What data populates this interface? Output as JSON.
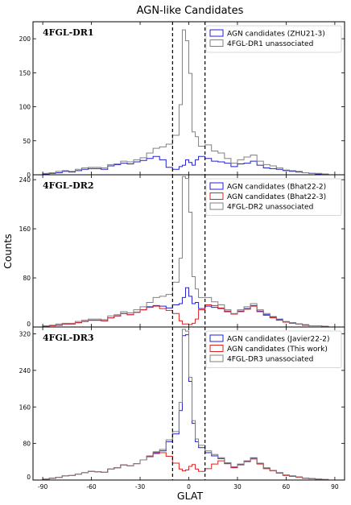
{
  "figure": {
    "title": "AGN-like Candidates",
    "xlabel": "GLAT",
    "ylabel": "Counts"
  },
  "chart_data": [
    {
      "type": "histogram",
      "panel_label": "4FGL-DR1",
      "x_bin_edges": [
        -90,
        -86,
        -82,
        -78,
        -74,
        -70,
        -66,
        -62,
        -58,
        -54,
        -50,
        -46,
        -42,
        -38,
        -34,
        -30,
        -26,
        -22,
        -18,
        -14,
        -10,
        -6,
        -4,
        -2,
        0,
        2,
        4,
        6,
        10,
        14,
        18,
        22,
        26,
        30,
        34,
        38,
        42,
        46,
        50,
        54,
        58,
        62,
        66,
        70,
        74,
        78,
        82,
        86,
        90
      ],
      "xlim": [
        -96,
        96
      ],
      "ylim": [
        0,
        225
      ],
      "yticks": [
        0,
        50,
        100,
        150,
        200
      ],
      "xticks": [
        -90,
        -60,
        -30,
        0,
        30,
        60,
        90
      ],
      "vlines": [
        -10,
        10
      ],
      "legend_position": "top-right",
      "series": [
        {
          "name": "AGN candidates (ZHU21-3)",
          "color": "#2222cc",
          "values": [
            1,
            2,
            3,
            5,
            4,
            6,
            8,
            9,
            9,
            8,
            13,
            15,
            17,
            16,
            19,
            21,
            24,
            27,
            22,
            11,
            8,
            12,
            14,
            22,
            18,
            14,
            22,
            27,
            24,
            20,
            19,
            17,
            12,
            16,
            17,
            20,
            14,
            10,
            9,
            8,
            6,
            5,
            4,
            3,
            2,
            1,
            1,
            0
          ]
        },
        {
          "name": "4FGL-DR1 unassociated",
          "color": "#808080",
          "values": [
            2,
            3,
            5,
            6,
            5,
            8,
            10,
            11,
            11,
            10,
            15,
            16,
            20,
            19,
            22,
            25,
            32,
            39,
            41,
            45,
            58,
            103,
            213,
            197,
            149,
            63,
            56,
            42,
            44,
            35,
            32,
            24,
            17,
            22,
            26,
            29,
            20,
            15,
            13,
            10,
            7,
            6,
            5,
            3,
            2,
            2,
            1,
            0
          ]
        }
      ]
    },
    {
      "type": "histogram",
      "panel_label": "4FGL-DR2",
      "x_bin_edges": [
        -90,
        -86,
        -82,
        -78,
        -74,
        -70,
        -66,
        -62,
        -58,
        -54,
        -50,
        -46,
        -42,
        -38,
        -34,
        -30,
        -26,
        -22,
        -18,
        -14,
        -10,
        -6,
        -4,
        -2,
        0,
        2,
        4,
        6,
        10,
        14,
        18,
        22,
        26,
        30,
        34,
        38,
        42,
        46,
        50,
        54,
        58,
        62,
        66,
        70,
        74,
        78,
        82,
        86,
        90
      ],
      "xlim": [
        -96,
        96
      ],
      "ylim": [
        0,
        248
      ],
      "yticks": [
        0,
        80,
        160,
        240
      ],
      "xticks": [
        -90,
        -60,
        -30,
        0,
        30,
        60,
        90
      ],
      "vlines": [
        -10,
        10
      ],
      "legend_position": "top-right",
      "series": [
        {
          "name": "AGN candidates (Bhat22-2)",
          "color": "#2222cc",
          "values": [
            1,
            2,
            3,
            5,
            5,
            7,
            9,
            11,
            11,
            10,
            15,
            18,
            22,
            20,
            24,
            28,
            33,
            35,
            34,
            31,
            36,
            38,
            48,
            64,
            50,
            38,
            40,
            30,
            34,
            32,
            30,
            25,
            21,
            26,
            30,
            35,
            26,
            20,
            16,
            12,
            8,
            7,
            5,
            3,
            2,
            2,
            1,
            0
          ]
        },
        {
          "name": "AGN candidates (Bhat22-3)",
          "color": "#dd2222",
          "values": [
            1,
            2,
            3,
            5,
            5,
            7,
            9,
            11,
            11,
            10,
            15,
            18,
            22,
            20,
            24,
            28,
            32,
            34,
            30,
            27,
            22,
            10,
            5,
            5,
            4,
            6,
            13,
            28,
            36,
            35,
            31,
            26,
            21,
            25,
            29,
            34,
            25,
            19,
            15,
            11,
            8,
            6,
            5,
            3,
            2,
            2,
            1,
            0
          ]
        },
        {
          "name": "4FGL-DR2 unassociated",
          "color": "#808080",
          "values": [
            2,
            3,
            5,
            6,
            6,
            9,
            11,
            13,
            13,
            12,
            18,
            20,
            25,
            23,
            28,
            33,
            40,
            48,
            50,
            53,
            73,
            112,
            245,
            242,
            187,
            82,
            62,
            48,
            48,
            41,
            36,
            28,
            22,
            28,
            33,
            38,
            28,
            22,
            17,
            13,
            9,
            7,
            5,
            4,
            2,
            2,
            1,
            0
          ]
        }
      ]
    },
    {
      "type": "histogram",
      "panel_label": "4FGL-DR3",
      "x_bin_edges": [
        -90,
        -86,
        -82,
        -78,
        -74,
        -70,
        -66,
        -62,
        -58,
        -54,
        -50,
        -46,
        -42,
        -38,
        -34,
        -30,
        -26,
        -22,
        -18,
        -14,
        -10,
        -6,
        -4,
        -2,
        0,
        2,
        4,
        6,
        10,
        14,
        18,
        22,
        26,
        30,
        34,
        38,
        42,
        46,
        50,
        54,
        58,
        62,
        66,
        70,
        74,
        78,
        82,
        86,
        90
      ],
      "xlim": [
        -96,
        96
      ],
      "ylim": [
        0,
        335
      ],
      "yticks": [
        0,
        80,
        160,
        240,
        320
      ],
      "xticks": [
        -90,
        -60,
        -30,
        0,
        30,
        60,
        90
      ],
      "vlines": [
        -10,
        10
      ],
      "legend_position": "top-right",
      "series": [
        {
          "name": "AGN candidates (Javier22-2)",
          "color": "#2222cc",
          "values": [
            2,
            4,
            6,
            9,
            10,
            13,
            16,
            19,
            18,
            17,
            24,
            27,
            33,
            31,
            36,
            44,
            52,
            60,
            64,
            84,
            101,
            152,
            316,
            318,
            216,
            124,
            84,
            71,
            60,
            53,
            47,
            36,
            28,
            34,
            41,
            48,
            36,
            26,
            21,
            16,
            11,
            9,
            7,
            4,
            3,
            2,
            1,
            0
          ]
        },
        {
          "name": "AGN candidates (This work)",
          "color": "#dd2222",
          "values": [
            2,
            4,
            6,
            9,
            10,
            13,
            16,
            19,
            18,
            17,
            24,
            27,
            33,
            31,
            36,
            44,
            51,
            58,
            60,
            52,
            37,
            24,
            20,
            22,
            30,
            34,
            24,
            19,
            25,
            35,
            42,
            36,
            27,
            33,
            40,
            46,
            35,
            25,
            20,
            15,
            10,
            8,
            6,
            4,
            3,
            2,
            1,
            0
          ]
        },
        {
          "name": "4FGL-DR3 unassociated",
          "color": "#808080",
          "values": [
            2,
            4,
            6,
            9,
            10,
            13,
            16,
            19,
            18,
            17,
            24,
            27,
            33,
            31,
            36,
            44,
            53,
            62,
            67,
            88,
            106,
            170,
            330,
            326,
            225,
            130,
            90,
            76,
            64,
            56,
            49,
            38,
            29,
            35,
            42,
            49,
            37,
            27,
            21,
            16,
            11,
            9,
            7,
            4,
            3,
            2,
            1,
            0
          ]
        }
      ]
    }
  ]
}
